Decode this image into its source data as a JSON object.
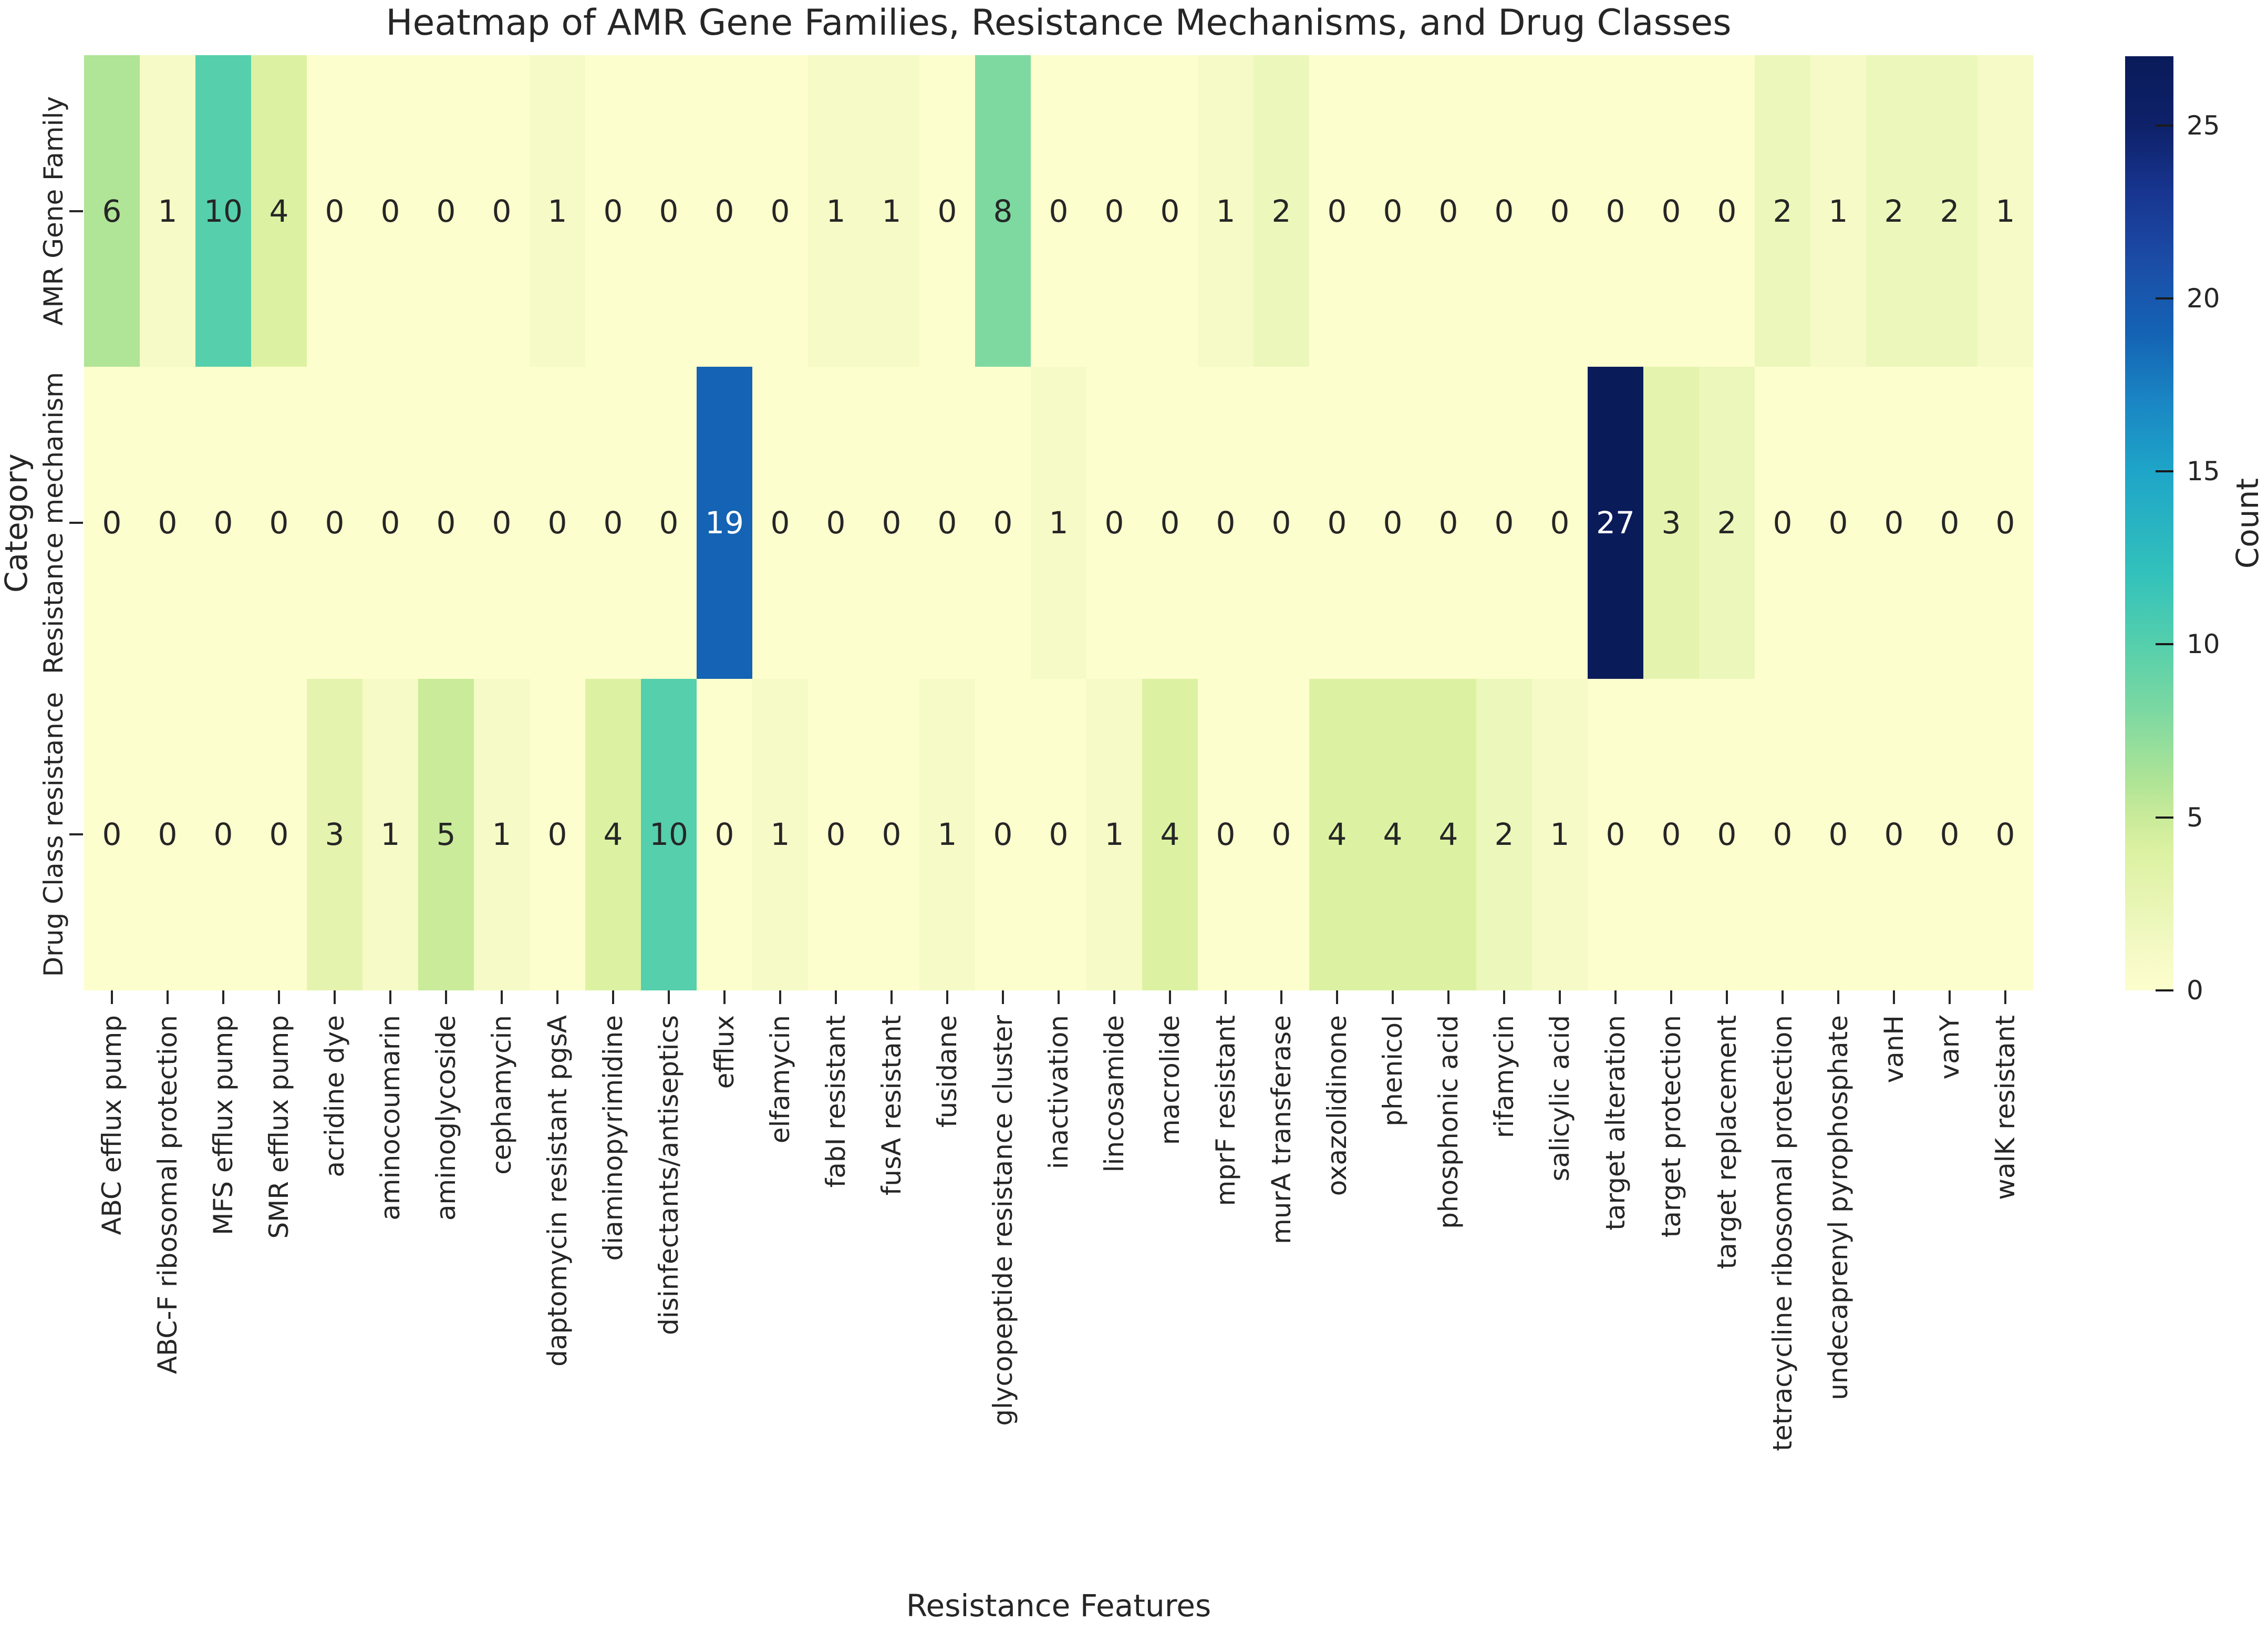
{
  "chart_data": {
    "type": "heatmap",
    "title": "Heatmap of AMR Gene Families, Resistance Mechanisms, and Drug Classes",
    "xlabel": "Resistance Features",
    "ylabel": "Category",
    "rows": [
      "AMR Gene Family",
      "Resistance mechanism",
      "Drug Class resistance"
    ],
    "columns": [
      "ABC efflux pump",
      "ABC-F ribosomal protection",
      "MFS efflux pump",
      "SMR efflux pump",
      "acridine dye",
      "aminocoumarin",
      "aminoglycoside",
      "cephamycin",
      "daptomycin resistant pgsA",
      "diaminopyrimidine",
      "disinfectants/antiseptics",
      "efflux",
      "elfamycin",
      "fabI resistant",
      "fusA resistant",
      "fusidane",
      "glycopeptide resistance cluster",
      "inactivation",
      "lincosamide",
      "macrolide",
      "mprF resistant",
      "murA transferase",
      "oxazolidinone",
      "phenicol",
      "phosphonic acid",
      "rifamycin",
      "salicylic acid",
      "target alteration",
      "target protection",
      "target replacement",
      "tetracycline ribosomal protection",
      "undecaprenyl pyrophosphate",
      "vanH",
      "vanY",
      "walK resistant"
    ],
    "series": [
      {
        "name": "AMR Gene Family",
        "values": [
          6,
          1,
          10,
          4,
          0,
          0,
          0,
          0,
          1,
          0,
          0,
          0,
          0,
          1,
          1,
          0,
          8,
          0,
          0,
          0,
          1,
          2,
          0,
          0,
          0,
          0,
          0,
          0,
          0,
          0,
          2,
          1,
          2,
          2,
          1
        ]
      },
      {
        "name": "Resistance mechanism",
        "values": [
          0,
          0,
          0,
          0,
          0,
          0,
          0,
          0,
          0,
          0,
          0,
          19,
          0,
          0,
          0,
          0,
          0,
          1,
          0,
          0,
          0,
          0,
          0,
          0,
          0,
          0,
          0,
          27,
          3,
          2,
          0,
          0,
          0,
          0,
          0
        ]
      },
      {
        "name": "Drug Class resistance",
        "values": [
          0,
          0,
          0,
          0,
          3,
          1,
          5,
          1,
          0,
          4,
          10,
          0,
          1,
          0,
          0,
          1,
          0,
          0,
          1,
          4,
          0,
          0,
          4,
          4,
          4,
          2,
          1,
          0,
          0,
          0,
          0,
          0,
          0,
          0,
          0
        ]
      }
    ],
    "colorbar": {
      "label": "Count",
      "ticks": [
        0,
        5,
        10,
        15,
        20,
        25
      ],
      "vmin": 0,
      "vmax": 27
    },
    "colormap": {
      "name": "YlGnBu",
      "points": [
        [
          0,
          "#fdfecd"
        ],
        [
          1,
          "#f6fac6"
        ],
        [
          2,
          "#ecf7bb"
        ],
        [
          3,
          "#e4f4ae"
        ],
        [
          4,
          "#dcf2a2"
        ],
        [
          5,
          "#c9eb9a"
        ],
        [
          6,
          "#b0e496"
        ],
        [
          8,
          "#7ed9a1"
        ],
        [
          10,
          "#55cfac"
        ],
        [
          12,
          "#33c2bb"
        ],
        [
          15,
          "#1ea5c8"
        ],
        [
          17,
          "#1a86c3"
        ],
        [
          19,
          "#1463b4"
        ],
        [
          21,
          "#1b4da7"
        ],
        [
          23,
          "#183691"
        ],
        [
          25,
          "#0e2169"
        ],
        [
          27,
          "#0a1b5a"
        ]
      ]
    },
    "annotation_text_colors": {
      "dark": "#262626",
      "light": "#ffffff"
    },
    "layout": {
      "legend_position": "right",
      "grid": false
    }
  }
}
